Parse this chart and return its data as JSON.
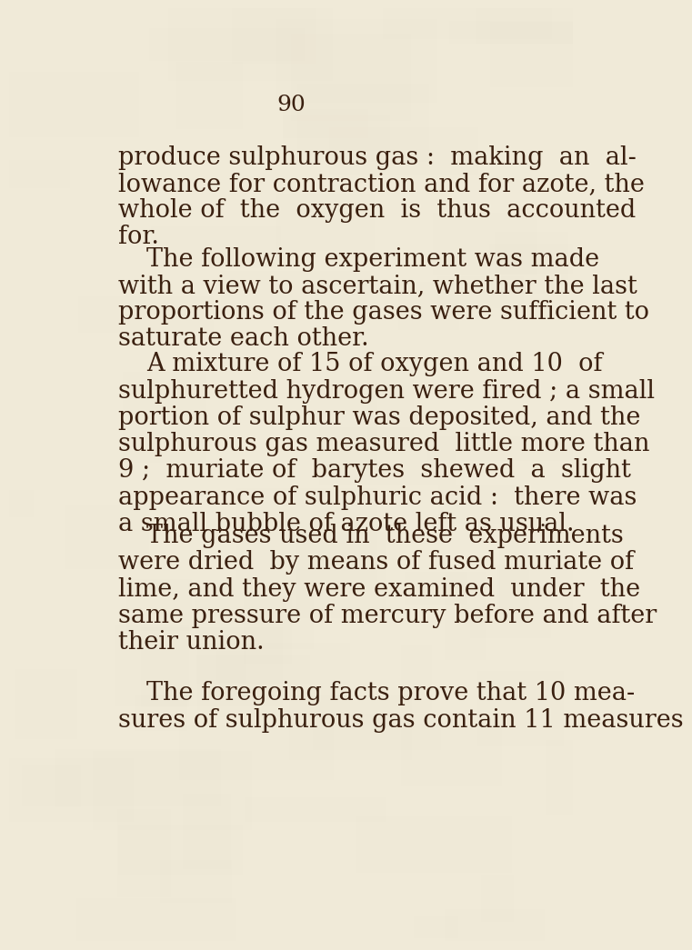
{
  "background_color": "#f0ead8",
  "text_color": "#3a2010",
  "page_number": "90",
  "font_size_body": 19.5,
  "font_size_page_num": 18,
  "paragraphs": [
    {
      "lines": [
        "produce sulphurous gas :  making  an  al-",
        "lowance for contraction and for azote, the",
        "whole of  the  oxygen  is  thus  accounted",
        "for."
      ],
      "indent": false
    },
    {
      "lines": [
        "The following experiment was made",
        "with a view to ascertain, whether the last",
        "proportions of the gases were sufficient to",
        "saturate each other."
      ],
      "indent": true
    },
    {
      "lines": [
        "A mixture of 15 of oxygen and 10  of",
        "sulphuretted hydrogen were fired ; a small",
        "portion of sulphur was deposited, and the",
        "sulphurous gas measured  little more than",
        "9 ;  muriate of  barytes  shewed  a  slight",
        "appearance of sulphuric acid :  there was",
        "a small bubble of azote left as usual."
      ],
      "indent": true
    },
    {
      "lines": [
        "The gases used in  these  experiments",
        "were dried  by means of fused muriate of",
        "lime, and they were examined  under  the",
        "same pressure of mercury before and after",
        "their union."
      ],
      "indent": true
    },
    {
      "lines": [
        "The foregoing facts prove that 10 mea-",
        "sures of sulphurous gas contain 11 measures"
      ],
      "indent": true
    }
  ]
}
